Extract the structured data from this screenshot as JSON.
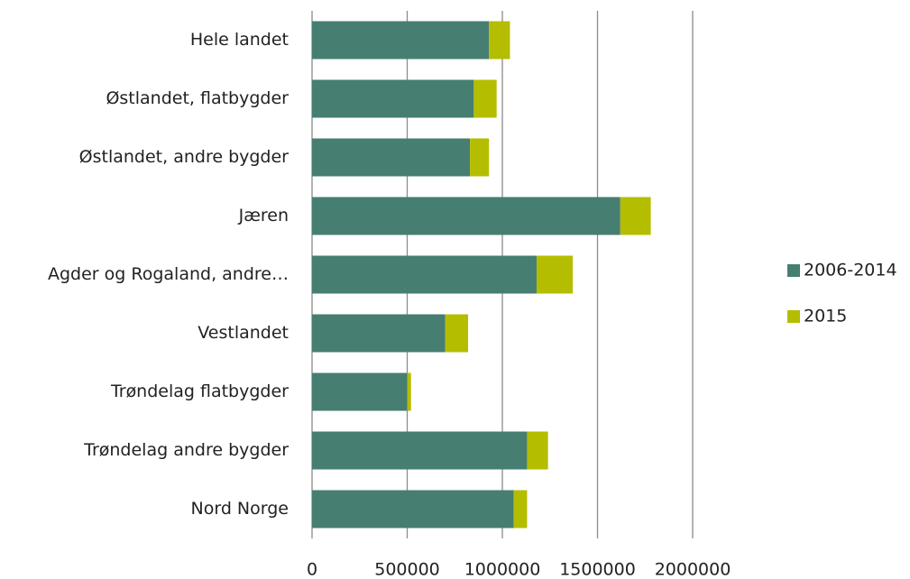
{
  "chart_data": {
    "type": "bar",
    "orientation": "horizontal",
    "stacked": true,
    "categories": [
      "Hele landet",
      "Østlandet, flatbygder",
      "Østlandet, andre bygder",
      "Jæren",
      "Agder og Rogaland, andre…",
      "Vestlandet",
      "Trøndelag flatbygder",
      "Trøndelag andre bygder",
      "Nord Norge"
    ],
    "series": [
      {
        "name": "2006-2014",
        "color": "#467e72",
        "values": [
          930000,
          850000,
          830000,
          1620000,
          1180000,
          700000,
          500000,
          1130000,
          1060000
        ]
      },
      {
        "name": "2015",
        "color": "#b5bd00",
        "values": [
          110000,
          120000,
          100000,
          160000,
          190000,
          120000,
          20000,
          110000,
          70000
        ]
      }
    ],
    "xlim": [
      0,
      2000000
    ],
    "xticks": [
      0,
      500000,
      1000000,
      1500000,
      2000000
    ],
    "grid": true,
    "legend": "right"
  }
}
